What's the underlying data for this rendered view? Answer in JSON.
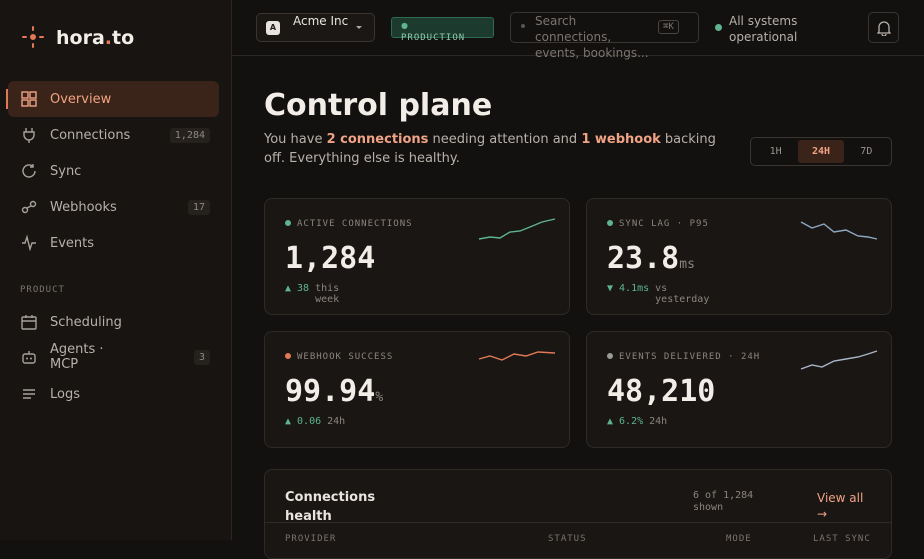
{
  "brand": {
    "parts": [
      "hora",
      ".",
      "to"
    ]
  },
  "nav": [
    {
      "label": "Overview"
    },
    {
      "label": "Connections",
      "badge": "1,284"
    },
    {
      "label": "Sync"
    },
    {
      "label": "Webhooks",
      "badge": "17"
    },
    {
      "label": "Events"
    }
  ],
  "section": "PRODUCT",
  "product_nav": [
    {
      "label": "Scheduling"
    },
    {
      "label": "Agents · MCP",
      "badge": "3"
    },
    {
      "label": "Logs"
    }
  ],
  "topbar": {
    "org_initial": "A",
    "org": "Acme Inc",
    "env": "PRODUCTION",
    "search": "Search connections, events, bookings...",
    "shortcut": "⌘K",
    "status": "All systems operational"
  },
  "page": {
    "title": "Control plane",
    "subtitle": [
      "You have ",
      "2 connections",
      " needing attention and ",
      "1 webhook",
      " backing off. Everything else is healthy."
    ]
  },
  "ranges": [
    {
      "label": "1H",
      "active": false
    },
    {
      "label": "24H",
      "active": true
    },
    {
      "label": "7D",
      "active": false
    }
  ],
  "metrics": [
    {
      "label": "ACTIVE CONNECTIONS",
      "value": "1,284",
      "delta": "▲ 38",
      "note": "this week",
      "dot": "#5fb38f"
    },
    {
      "label": "SYNC LAG · P95",
      "value": "23.8",
      "unit": "ms",
      "delta": "▼ 4.1ms",
      "note": "vs yesterday",
      "dot": "#5fb38f"
    },
    {
      "label": "WEBHOOK SUCCESS",
      "value": "99.94",
      "unit": "%",
      "delta": "▲ 0.06",
      "note": "24h",
      "dot": "#e07a56"
    },
    {
      "label": "EVENTS DELIVERED · 24H",
      "value": "48,210",
      "delta": "▲ 6.2%",
      "note": "24h",
      "dot": "#9a9a96"
    }
  ],
  "table": {
    "title": "Connections health",
    "count": "6 of 1,284 shown",
    "link": "View all →",
    "columns": [
      "PROVIDER",
      "STATUS",
      "MODE",
      "LAST SYNC"
    ]
  }
}
